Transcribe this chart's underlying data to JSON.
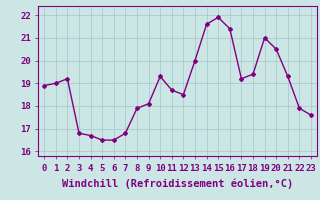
{
  "x": [
    0,
    1,
    2,
    3,
    4,
    5,
    6,
    7,
    8,
    9,
    10,
    11,
    12,
    13,
    14,
    15,
    16,
    17,
    18,
    19,
    20,
    21,
    22,
    23
  ],
  "y": [
    18.9,
    19.0,
    19.2,
    16.8,
    16.7,
    16.5,
    16.5,
    16.8,
    17.9,
    18.1,
    19.3,
    18.7,
    18.5,
    20.0,
    21.6,
    21.9,
    21.4,
    19.2,
    19.4,
    21.0,
    20.5,
    19.3,
    17.9,
    17.6
  ],
  "line_color": "#800080",
  "marker": "D",
  "marker_size": 2,
  "bg_color": "#cce5e5",
  "grid_color": "#aacccc",
  "xlabel": "Windchill (Refroidissement éolien,°C)",
  "ylabel_ticks": [
    16,
    17,
    18,
    19,
    20,
    21,
    22
  ],
  "xlim": [
    -0.5,
    23.5
  ],
  "ylim": [
    15.8,
    22.4
  ],
  "xlabel_fontsize": 7.5,
  "tick_fontsize": 6.5,
  "line_width": 1.0
}
